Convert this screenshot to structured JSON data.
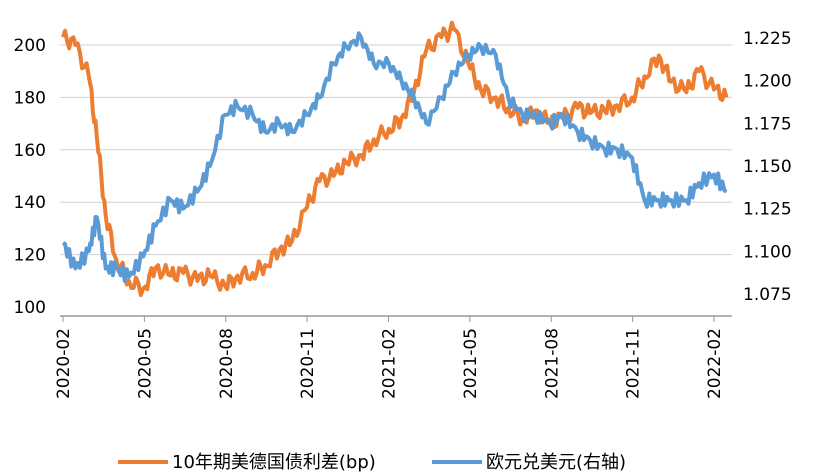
{
  "chart_data": {
    "type": "line",
    "title": "",
    "xlabel": "",
    "ylabel_left": "",
    "ylabel_right": "",
    "x_tick_labels": [
      "2020-02",
      "2020-05",
      "2020-08",
      "2020-11",
      "2021-02",
      "2021-05",
      "2021-08",
      "2021-11",
      "2022-02"
    ],
    "y_left": {
      "min": 100,
      "max": 200,
      "ticks": [
        "100",
        "120",
        "140",
        "160",
        "180",
        "200"
      ]
    },
    "y_right": {
      "min": 1.075,
      "max": 1.225,
      "ticks": [
        "1.075",
        "1.100",
        "1.125",
        "1.150",
        "1.175",
        "1.200",
        "1.225"
      ]
    },
    "grid": "horizontal",
    "legend_position": "bottom",
    "series": [
      {
        "name": "10年期美德国债利差(bp)",
        "axis": "left",
        "color": "#ED7D31",
        "x": [
          "2020-02",
          "2020-02-15",
          "2020-03",
          "2020-03-10",
          "2020-03-20",
          "2020-04",
          "2020-04-15",
          "2020-05",
          "2020-05-15",
          "2020-06",
          "2020-06-15",
          "2020-07",
          "2020-07-15",
          "2020-08",
          "2020-08-15",
          "2020-09",
          "2020-09-15",
          "2020-10",
          "2020-10-15",
          "2020-11",
          "2020-11-15",
          "2020-12",
          "2020-12-15",
          "2021-01",
          "2021-01-15",
          "2021-02",
          "2021-02-15",
          "2021-03",
          "2021-03-15",
          "2021-04",
          "2021-04-15",
          "2021-05",
          "2021-05-15",
          "2021-06",
          "2021-06-15",
          "2021-07",
          "2021-07-15",
          "2021-08",
          "2021-08-15",
          "2021-09",
          "2021-09-15",
          "2021-10",
          "2021-10-15",
          "2021-11",
          "2021-11-15",
          "2021-12",
          "2021-12-15",
          "2022-01",
          "2022-01-15",
          "2022-02",
          "2022-02-15"
        ],
        "values": [
          203,
          200,
          188,
          165,
          135,
          118,
          110,
          107,
          115,
          112,
          113,
          110,
          112,
          108,
          112,
          113,
          116,
          122,
          125,
          138,
          148,
          150,
          155,
          158,
          164,
          168,
          172,
          182,
          198,
          203,
          206,
          193,
          183,
          180,
          176,
          172,
          175,
          170,
          172,
          176,
          174,
          175,
          177,
          180,
          188,
          196,
          186,
          182,
          190,
          183,
          180
        ]
      },
      {
        "name": "欧元兑美元(右轴)",
        "axis": "right",
        "color": "#5B9BD5",
        "x": [
          "2020-02",
          "2020-02-15",
          "2020-03",
          "2020-03-10",
          "2020-03-20",
          "2020-04",
          "2020-04-15",
          "2020-05",
          "2020-05-15",
          "2020-06",
          "2020-06-15",
          "2020-07",
          "2020-07-15",
          "2020-08",
          "2020-08-15",
          "2020-09",
          "2020-09-15",
          "2020-10",
          "2020-10-15",
          "2020-11",
          "2020-11-15",
          "2020-12",
          "2020-12-15",
          "2021-01",
          "2021-01-15",
          "2021-02",
          "2021-02-15",
          "2021-03",
          "2021-03-15",
          "2021-04",
          "2021-04-15",
          "2021-05",
          "2021-05-15",
          "2021-06",
          "2021-06-15",
          "2021-07",
          "2021-07-15",
          "2021-08",
          "2021-08-15",
          "2021-09",
          "2021-09-15",
          "2021-10",
          "2021-10-15",
          "2021-11",
          "2021-11-15",
          "2021-12",
          "2021-12-15",
          "2022-01",
          "2022-01-15",
          "2022-02",
          "2022-02-15"
        ],
        "values": [
          1.105,
          1.09,
          1.1,
          1.12,
          1.09,
          1.09,
          1.085,
          1.097,
          1.115,
          1.13,
          1.125,
          1.135,
          1.15,
          1.18,
          1.185,
          1.18,
          1.17,
          1.175,
          1.17,
          1.18,
          1.19,
          1.21,
          1.22,
          1.225,
          1.21,
          1.21,
          1.2,
          1.19,
          1.175,
          1.19,
          1.205,
          1.215,
          1.22,
          1.215,
          1.19,
          1.18,
          1.18,
          1.175,
          1.18,
          1.17,
          1.165,
          1.16,
          1.16,
          1.155,
          1.13,
          1.13,
          1.13,
          1.13,
          1.14,
          1.145,
          1.135
        ]
      }
    ]
  }
}
